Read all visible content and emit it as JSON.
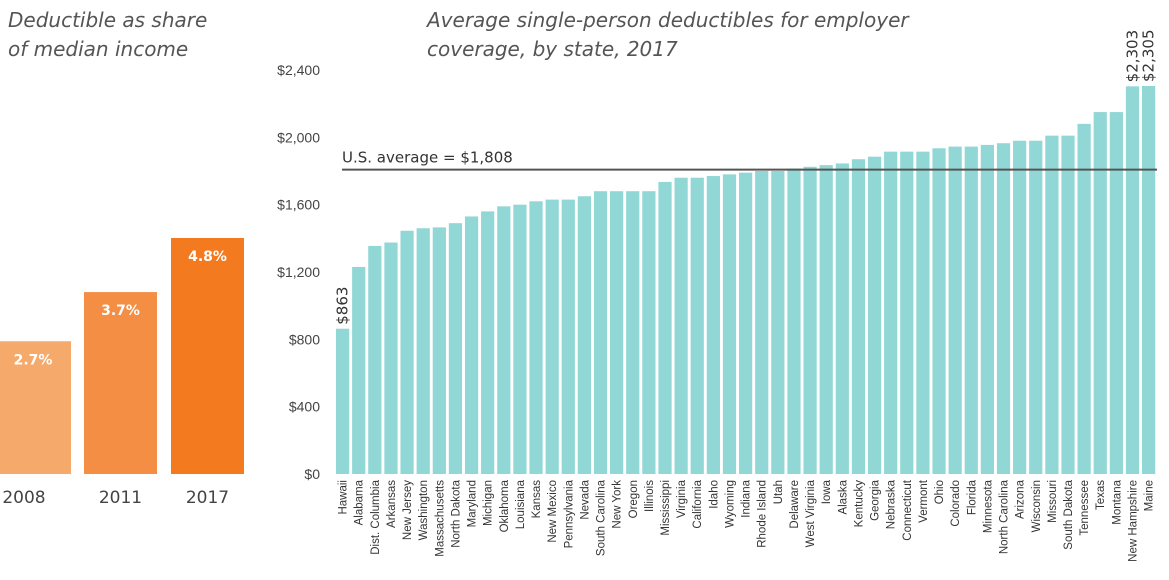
{
  "chart_data": [
    {
      "type": "bar",
      "title_lines": [
        "Deductible as share",
        "of median income"
      ],
      "categories": [
        "2008",
        "2011",
        "2017"
      ],
      "values": [
        2.7,
        3.7,
        4.8
      ],
      "data_labels": [
        "2.7%",
        "3.7%",
        "4.8%"
      ],
      "colors": [
        "#f5a96b",
        "#f48e45",
        "#f47a20"
      ],
      "ylim": [
        0,
        5.2
      ],
      "grid": false
    },
    {
      "type": "bar",
      "title_lines": [
        "Average single-person deductibles for employer",
        "coverage, by state, 2017"
      ],
      "categories": [
        "Hawaii",
        "Alabama",
        "Dist. Columbia",
        "Arkansas",
        "New Jersey",
        "Washington",
        "Massachusetts",
        "North Dakota",
        "Maryland",
        "Michigan",
        "Oklahoma",
        "Louisiana",
        "Kansas",
        "New Mexico",
        "Pennsylvania",
        "Nevada",
        "South Carolina",
        "New York",
        "Oregon",
        "Illinois",
        "Mississippi",
        "Virginia",
        "California",
        "Idaho",
        "Wyoming",
        "Indiana",
        "Rhode Island",
        "Utah",
        "Delaware",
        "West Virginia",
        "Iowa",
        "Alaska",
        "Kentucky",
        "Georgia",
        "Nebraska",
        "Connecticut",
        "Vermont",
        "Ohio",
        "Colorado",
        "Florida",
        "Minnesota",
        "North Carolina",
        "Arizona",
        "Wisconsin",
        "Missouri",
        "South Dakota",
        "Tennessee",
        "Texas",
        "Montana",
        "New Hampshire",
        "Maine"
      ],
      "values": [
        863,
        1230,
        1355,
        1375,
        1445,
        1460,
        1465,
        1490,
        1530,
        1560,
        1590,
        1600,
        1620,
        1630,
        1630,
        1650,
        1680,
        1680,
        1680,
        1680,
        1735,
        1760,
        1760,
        1770,
        1780,
        1790,
        1800,
        1800,
        1815,
        1825,
        1835,
        1845,
        1870,
        1885,
        1915,
        1915,
        1915,
        1935,
        1945,
        1945,
        1955,
        1965,
        1980,
        1980,
        2010,
        2010,
        2080,
        2150,
        2150,
        2303,
        2305
      ],
      "yticks": [
        "$0",
        "$400",
        "$800",
        "$1,200",
        "$1,600",
        "$2,000",
        "$2,400"
      ],
      "ylim": [
        0,
        2400
      ],
      "grid": false,
      "reference_line": {
        "value": 1808,
        "label": "U.S. average = $1,808"
      },
      "value_labels": [
        {
          "index": 0,
          "text": "$863"
        },
        {
          "index": 49,
          "text": "$2,303"
        },
        {
          "index": 50,
          "text": "$2,305"
        }
      ],
      "bar_color": "#90d7d5",
      "line_color": "#555555"
    }
  ]
}
